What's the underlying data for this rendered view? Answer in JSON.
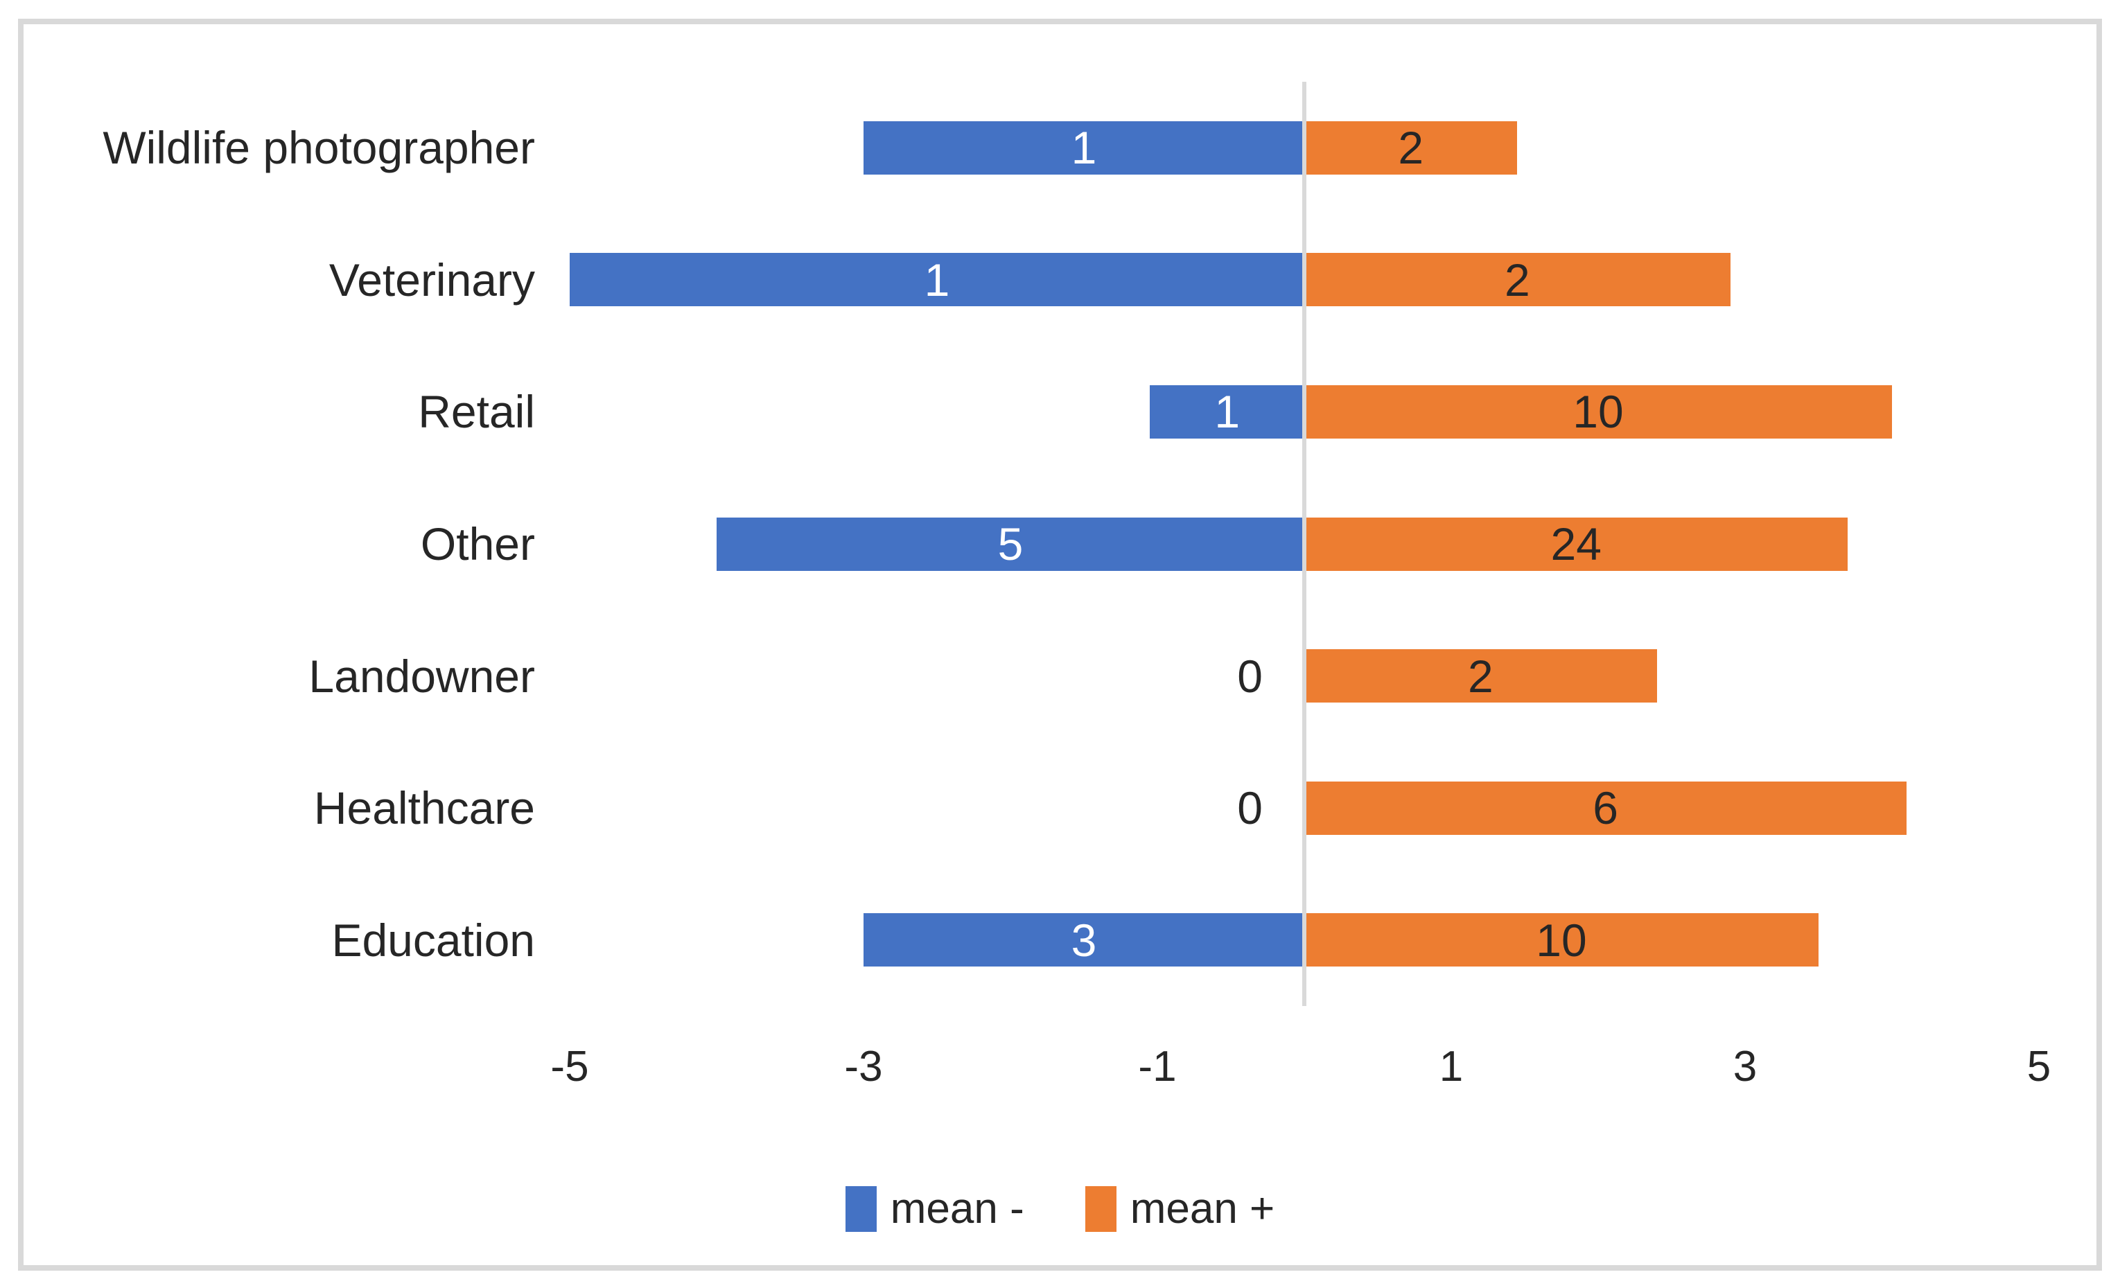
{
  "chart_data": {
    "type": "bar",
    "orientation": "horizontal-diverging",
    "title": "",
    "xlabel": "",
    "ylabel": "",
    "categories": [
      "Wildlife photographer",
      "Veterinary",
      "Retail",
      "Other",
      "Landowner",
      "Healthcare",
      "Education"
    ],
    "series": [
      {
        "name": "mean -",
        "color": "#4472C4",
        "values": [
          -3,
          -5,
          -1.05,
          -4,
          0,
          0,
          -3
        ],
        "bar_labels": [
          "1",
          "1",
          "1",
          "5",
          "0",
          "0",
          "3"
        ],
        "label_color_inside": "#FFFFFF",
        "label_color_outside": "#262626"
      },
      {
        "name": "mean +",
        "color": "#ED7D31",
        "values": [
          1.45,
          2.9,
          4.0,
          3.7,
          2.4,
          4.1,
          3.5
        ],
        "bar_labels": [
          "2",
          "2",
          "10",
          "24",
          "2",
          "6",
          "10"
        ],
        "label_color_inside": "#262626",
        "label_color_outside": "#262626"
      }
    ],
    "x_ticks": [
      "-5",
      "-3",
      "-1",
      "1",
      "3",
      "5"
    ],
    "x_tick_values": [
      -5,
      -3,
      -1,
      1,
      3,
      5
    ],
    "xlim": [
      -5,
      5
    ],
    "grid": false,
    "legend_position": "bottom-center",
    "axis_line_color": "#D9D9D9",
    "border_color": "#D9D9D9",
    "text_color": "#262626",
    "background_color": "#FFFFFF"
  }
}
